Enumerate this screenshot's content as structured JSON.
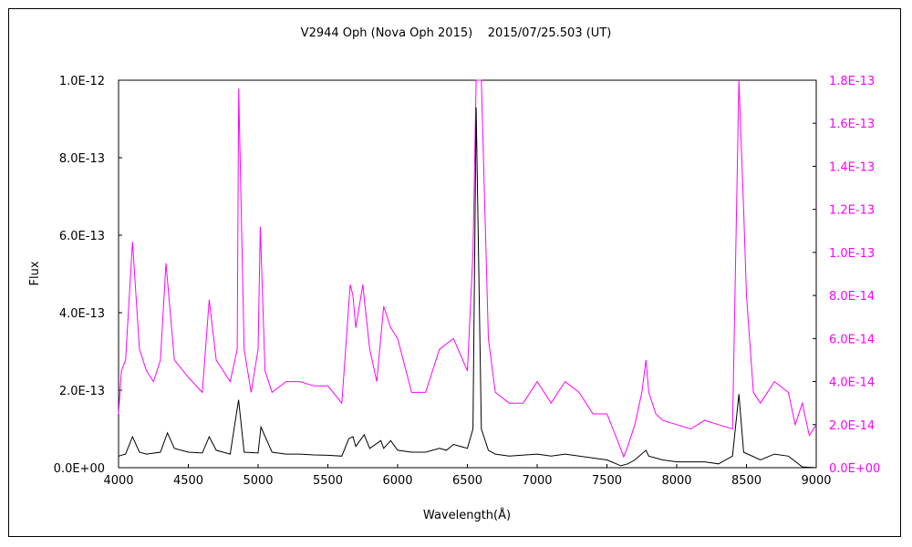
{
  "chart_data": {
    "type": "line",
    "title": "V2944 Oph (Nova Oph 2015)    2015/07/25.503 (UT)",
    "xlabel": "Wavelength(Å)",
    "ylabel": "Flux",
    "xlim": [
      4000,
      9000
    ],
    "ylim_left": [
      0,
      1e-12
    ],
    "ylim_right": [
      0,
      1.8e-13
    ],
    "x_ticks": [
      "4000",
      "4500",
      "5000",
      "5500",
      "6000",
      "6500",
      "7000",
      "7500",
      "8000",
      "8500",
      "9000"
    ],
    "y_left_ticks": [
      "0.0E+00",
      "2.0E-13",
      "4.0E-13",
      "6.0E-13",
      "8.0E-13",
      "1.0E-12"
    ],
    "y_right_ticks": [
      "0.0E+00",
      "2.0E-14",
      "4.0E-14",
      "6.0E-14",
      "8.0E-14",
      "1.0E-13",
      "1.2E-13",
      "1.4E-13",
      "1.6E-13",
      "1.8E-13"
    ],
    "grid": false,
    "colors": {
      "left_series": "#000000",
      "right_series": "#ff00ff",
      "right_axis": "#ff00ff"
    },
    "series": [
      {
        "axis": "left",
        "x": [
          4000,
          4050,
          4100,
          4150,
          4200,
          4300,
          4350,
          4400,
          4500,
          4600,
          4650,
          4700,
          4800,
          4860,
          4900,
          5000,
          5020,
          5100,
          5200,
          5300,
          5400,
          5500,
          5600,
          5650,
          5680,
          5700,
          5760,
          5800,
          5880,
          5900,
          5950,
          6000,
          6100,
          6200,
          6300,
          6350,
          6400,
          6500,
          6540,
          6563,
          6600,
          6650,
          6700,
          6800,
          7000,
          7100,
          7200,
          7400,
          7500,
          7600,
          7650,
          7700,
          7780,
          7800,
          7900,
          8000,
          8200,
          8300,
          8400,
          8446,
          8480,
          8600,
          8700,
          8800,
          8900,
          9000
        ],
        "y": [
          3e-14,
          3.5e-14,
          8e-14,
          4e-14,
          3.5e-14,
          4e-14,
          9e-14,
          5e-14,
          4e-14,
          3.8e-14,
          8e-14,
          4.5e-14,
          3.5e-14,
          1.75e-13,
          4e-14,
          3.8e-14,
          1.05e-13,
          4e-14,
          3.5e-14,
          3.5e-14,
          3.3e-14,
          3.2e-14,
          3e-14,
          7.5e-14,
          8e-14,
          5.5e-14,
          8.5e-14,
          5e-14,
          7e-14,
          5e-14,
          7e-14,
          4.5e-14,
          4e-14,
          4e-14,
          5e-14,
          4.5e-14,
          6e-14,
          5e-14,
          1e-13,
          9.3e-13,
          1e-13,
          4.5e-14,
          3.5e-14,
          3e-14,
          3.5e-14,
          3e-14,
          3.5e-14,
          2.5e-14,
          2e-14,
          5e-15,
          1e-14,
          2e-14,
          4.5e-14,
          3e-14,
          2e-14,
          1.5e-14,
          1.5e-14,
          1e-14,
          3e-14,
          1.9e-13,
          4e-14,
          2e-14,
          3.5e-14,
          3e-14,
          2e-15,
          0.0
        ]
      },
      {
        "axis": "right",
        "x": [
          4000,
          4020,
          4050,
          4100,
          4150,
          4200,
          4250,
          4300,
          4340,
          4400,
          4500,
          4600,
          4650,
          4700,
          4800,
          4850,
          4861,
          4900,
          4950,
          5000,
          5016,
          5050,
          5100,
          5200,
          5300,
          5400,
          5500,
          5600,
          5660,
          5680,
          5700,
          5750,
          5800,
          5850,
          5900,
          5950,
          6000,
          6100,
          6200,
          6300,
          6400,
          6500,
          6540,
          6563,
          6600,
          6650,
          6700,
          6800,
          6900,
          7000,
          7100,
          7200,
          7300,
          7400,
          7500,
          7580,
          7620,
          7650,
          7700,
          7750,
          7780,
          7800,
          7850,
          7900,
          8000,
          8100,
          8200,
          8300,
          8400,
          8446,
          8480,
          8500,
          8550,
          8600,
          8700,
          8800,
          8850,
          8900,
          8950,
          9000
        ],
        "y": [
          2.5e-14,
          4.5e-14,
          5e-14,
          1.05e-13,
          5.5e-14,
          4.5e-14,
          4e-14,
          5e-14,
          9.5e-14,
          5e-14,
          4.2e-14,
          3.5e-14,
          7.8e-14,
          5e-14,
          4e-14,
          5.5e-14,
          1.76e-13,
          5.5e-14,
          3.5e-14,
          5.5e-14,
          1.12e-13,
          4.5e-14,
          3.5e-14,
          4e-14,
          4e-14,
          3.8e-14,
          3.8e-14,
          3e-14,
          8.5e-14,
          8e-14,
          6.5e-14,
          8.5e-14,
          5.5e-14,
          4e-14,
          7.5e-14,
          6.5e-14,
          6e-14,
          3.5e-14,
          3.5e-14,
          5.5e-14,
          6e-14,
          4.5e-14,
          1e-13,
          1.8e-13,
          1.8e-13,
          6e-14,
          3.5e-14,
          3e-14,
          3e-14,
          4e-14,
          3e-14,
          4e-14,
          3.5e-14,
          2.5e-14,
          2.5e-14,
          1.2e-14,
          5e-15,
          1e-14,
          2e-14,
          3.5e-14,
          5e-14,
          3.5e-14,
          2.5e-14,
          2.2e-14,
          2e-14,
          1.8e-14,
          2.2e-14,
          2e-14,
          1.8e-14,
          1.8e-13,
          1.2e-13,
          8e-14,
          3.5e-14,
          3e-14,
          4e-14,
          3.5e-14,
          2e-14,
          3e-14,
          1.5e-14,
          2e-14
        ]
      }
    ]
  }
}
